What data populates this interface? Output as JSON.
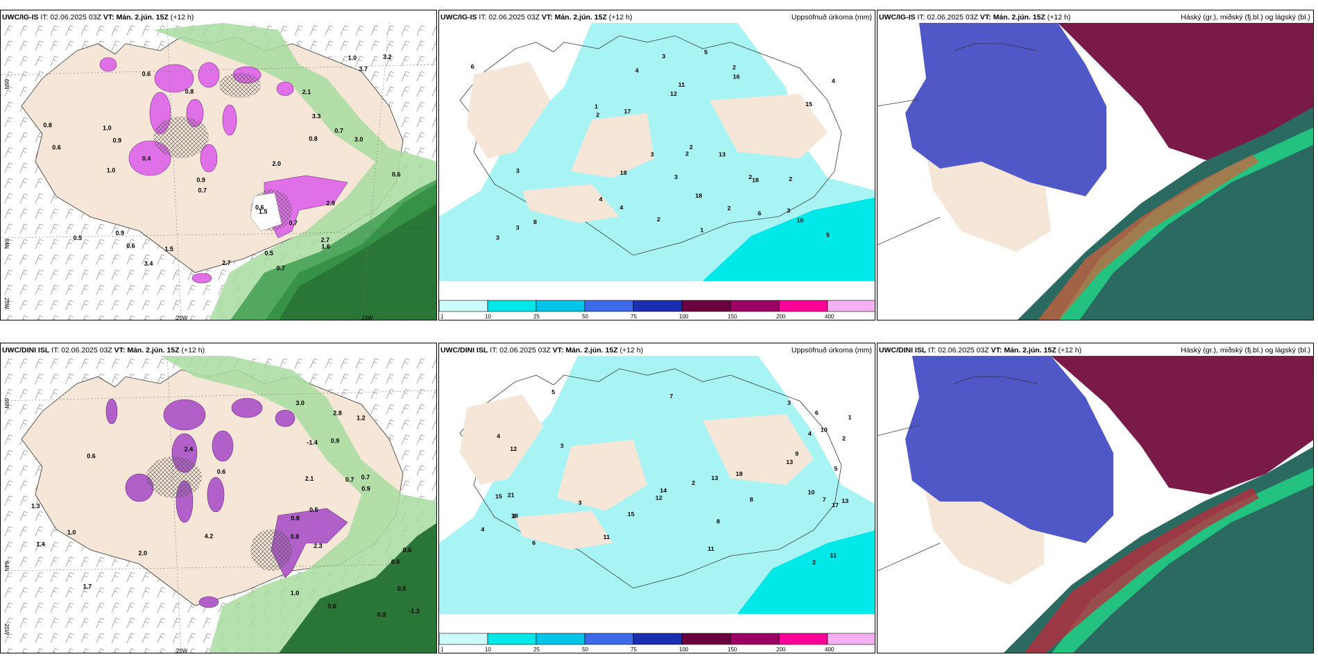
{
  "rows": [
    {
      "model": "UWC/IG-IS",
      "it_label": "IT: 02.06.2025 03Z",
      "vt_label": "VT: Mán. 2.jún. 15Z",
      "lead": "(+12 h)"
    },
    {
      "model": "UWC/DINI ISL",
      "it_label": "IT: 02.06.2025 03Z",
      "vt_label": "VT: Mán. 2.jún. 15Z",
      "lead": "(+12 h)"
    }
  ],
  "precip_title": "Uppsöfnuð úrkoma (mm)",
  "cloud_title": "Háský (gr.), miðský (fj.bl.) og lágský (bl.)",
  "grid_labels": {
    "lat_66": "66N",
    "lat_64": "64N",
    "lon_20": "20W",
    "lon_15": "15W",
    "lon_25": "25W"
  },
  "precip_legend": {
    "ticks": [
      "1",
      "10",
      "25",
      "50",
      "75",
      "100",
      "150",
      "200",
      "400"
    ],
    "colors": [
      "#cbfbfb",
      "#00e8e8",
      "#00c4e8",
      "#3c6ae8",
      "#1a2fb0",
      "#6a003e",
      "#9c0066",
      "#ff0098",
      "#f4b2f4"
    ]
  },
  "colors": {
    "land": "#f5e6d8",
    "precip_light": "#a8f4f4",
    "green_light": "#a8dca0",
    "green_dark": "#1a6a2a",
    "magenta": "#e070e8",
    "cloud_blue": "#5058c8",
    "cloud_dark": "#7a1a48",
    "cloud_teal": "#2a6a60"
  },
  "annot": {
    "p1": [
      "0.7",
      "0.6",
      "0.9",
      "1.0",
      "0.7",
      "0.5",
      "0.6",
      "0.4",
      "0.7",
      "0.6",
      "0.5",
      "0.8",
      "0.9",
      "0.6",
      "0.8",
      "1.0",
      "0.6",
      "3.7",
      "2.9",
      "3.0",
      "2.7",
      "1.5",
      "3.4",
      "1.6",
      "2.0",
      "3.3",
      "1.0",
      "0.9",
      "2.7",
      "0.8",
      "0.7",
      "3.2",
      "2.1",
      "1.5"
    ],
    "p2": [
      "3",
      "2",
      "2",
      "3",
      "4",
      "5",
      "3",
      "2",
      "6",
      "4",
      "5",
      "2",
      "4",
      "3",
      "2",
      "1",
      "2",
      "3",
      "3",
      "4",
      "6",
      "8",
      "2",
      "13",
      "18",
      "16",
      "17",
      "12",
      "15",
      "18",
      "10",
      "18",
      "11",
      "3",
      "2",
      "1"
    ],
    "p4": [
      "0.8",
      "0.6",
      "0.7",
      "0.6",
      "1.0",
      "0.9",
      "0.7",
      "0.6",
      "0.5",
      "0.6",
      "0.5",
      "0.8",
      "1.4",
      "2.3",
      "2.0",
      "0.9",
      "1.2",
      "1.0",
      "2.8",
      "2.4",
      "4.2",
      "1.3",
      "2.1",
      "3.0",
      "0.9",
      "1.7",
      "0.6",
      "-1.4",
      "-1.3"
    ],
    "p5": [
      "3",
      "2",
      "4",
      "11",
      "7",
      "5",
      "2",
      "3",
      "6",
      "5",
      "7",
      "4",
      "13",
      "2",
      "10",
      "12",
      "13",
      "15",
      "18",
      "9",
      "6",
      "3",
      "11",
      "8",
      "1",
      "2",
      "4",
      "10",
      "21",
      "18",
      "17",
      "13",
      "14",
      "15",
      "12",
      "11",
      "8"
    ]
  }
}
